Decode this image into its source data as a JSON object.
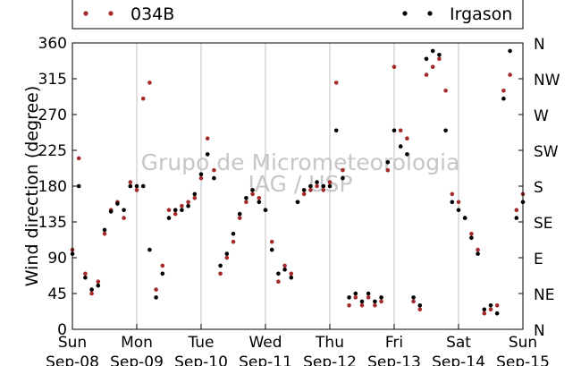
{
  "chart_data": {
    "type": "scatter",
    "ylabel": "Wind direction (degree)",
    "xlabel": "",
    "ylim": [
      0,
      360
    ],
    "xlim": [
      0,
      7
    ],
    "y_ticks": [
      0,
      45,
      90,
      135,
      180,
      225,
      270,
      315,
      360
    ],
    "y_tick_labels": [
      "0",
      "45",
      "90",
      "135",
      "180",
      "225",
      "270",
      "315",
      "360"
    ],
    "right_ticks": [
      {
        "value": 0,
        "label": "N"
      },
      {
        "value": 45,
        "label": "NE"
      },
      {
        "value": 90,
        "label": "E"
      },
      {
        "value": 135,
        "label": "SE"
      },
      {
        "value": 180,
        "label": "S"
      },
      {
        "value": 225,
        "label": "SW"
      },
      {
        "value": 270,
        "label": "W"
      },
      {
        "value": 315,
        "label": "NW"
      },
      {
        "value": 360,
        "label": "N"
      }
    ],
    "x_ticks": [
      {
        "value": 0,
        "day": "Sun",
        "date": "Sep-08"
      },
      {
        "value": 1,
        "day": "Mon",
        "date": "Sep-09"
      },
      {
        "value": 2,
        "day": "Tue",
        "date": "Sep-10"
      },
      {
        "value": 3,
        "day": "Wed",
        "date": "Sep-11"
      },
      {
        "value": 4,
        "day": "Thu",
        "date": "Sep-12"
      },
      {
        "value": 5,
        "day": "Fri",
        "date": "Sep-13"
      },
      {
        "value": 6,
        "day": "Sat",
        "date": "Sep-14"
      },
      {
        "value": 7,
        "day": "Sun",
        "date": "Sep-15"
      }
    ],
    "grid": "vertical",
    "legend_placement": "top",
    "watermark": [
      "Grupo de Micrometeorologia",
      "IAG / USP"
    ],
    "colors": {
      "034B": "#a52a2a",
      "Irgason": "#000000",
      "grid": "#bfbfbf"
    },
    "series": [
      {
        "name": "034B",
        "color": "#a52a2a",
        "x": [
          0.0,
          0.1,
          0.2,
          0.3,
          0.4,
          0.5,
          0.6,
          0.7,
          0.8,
          0.9,
          1.0,
          1.1,
          1.2,
          1.3,
          1.4,
          1.5,
          1.6,
          1.7,
          1.8,
          1.9,
          2.0,
          2.1,
          2.2,
          2.3,
          2.4,
          2.5,
          2.6,
          2.7,
          2.8,
          2.9,
          3.0,
          3.1,
          3.2,
          3.3,
          3.4,
          3.5,
          3.6,
          3.7,
          3.8,
          3.9,
          4.0,
          4.1,
          4.2,
          4.3,
          4.4,
          4.5,
          4.6,
          4.7,
          4.8,
          4.9,
          5.0,
          5.1,
          5.2,
          5.3,
          5.4,
          5.5,
          5.6,
          5.7,
          5.8,
          5.9,
          6.0,
          6.1,
          6.2,
          6.3,
          6.4,
          6.5,
          6.6,
          6.7,
          6.8,
          6.9,
          7.0
        ],
        "values": [
          100,
          215,
          70,
          45,
          60,
          120,
          150,
          160,
          140,
          185,
          175,
          290,
          310,
          50,
          80,
          150,
          145,
          155,
          160,
          165,
          190,
          240,
          200,
          70,
          90,
          110,
          140,
          160,
          170,
          165,
          150,
          110,
          60,
          80,
          70,
          160,
          170,
          175,
          180,
          175,
          185,
          310,
          200,
          30,
          40,
          30,
          40,
          30,
          35,
          200,
          330,
          250,
          240,
          35,
          25,
          320,
          330,
          340,
          300,
          170,
          160,
          140,
          120,
          100,
          20,
          25,
          30,
          300,
          320,
          150,
          170
        ]
      },
      {
        "name": "Irgason",
        "color": "#000000",
        "x": [
          0.0,
          0.1,
          0.2,
          0.3,
          0.4,
          0.5,
          0.6,
          0.7,
          0.8,
          0.9,
          1.0,
          1.1,
          1.2,
          1.3,
          1.4,
          1.5,
          1.6,
          1.7,
          1.8,
          1.9,
          2.0,
          2.1,
          2.2,
          2.3,
          2.4,
          2.5,
          2.6,
          2.7,
          2.8,
          2.9,
          3.0,
          3.1,
          3.2,
          3.3,
          3.4,
          3.5,
          3.6,
          3.7,
          3.8,
          3.9,
          4.0,
          4.1,
          4.2,
          4.3,
          4.4,
          4.5,
          4.6,
          4.7,
          4.8,
          4.9,
          5.0,
          5.1,
          5.2,
          5.3,
          5.4,
          5.5,
          5.6,
          5.7,
          5.8,
          5.9,
          6.0,
          6.1,
          6.2,
          6.3,
          6.4,
          6.5,
          6.6,
          6.7,
          6.8,
          6.9,
          7.0
        ],
        "values": [
          95,
          180,
          65,
          50,
          55,
          125,
          148,
          158,
          150,
          180,
          180,
          180,
          100,
          40,
          70,
          140,
          150,
          150,
          155,
          170,
          195,
          220,
          190,
          80,
          95,
          120,
          145,
          165,
          175,
          160,
          150,
          100,
          70,
          75,
          65,
          160,
          175,
          180,
          185,
          180,
          180,
          250,
          190,
          40,
          45,
          35,
          45,
          35,
          40,
          210,
          250,
          230,
          220,
          40,
          30,
          340,
          350,
          345,
          250,
          160,
          150,
          140,
          115,
          95,
          25,
          30,
          20,
          290,
          350,
          140,
          160
        ]
      }
    ]
  }
}
